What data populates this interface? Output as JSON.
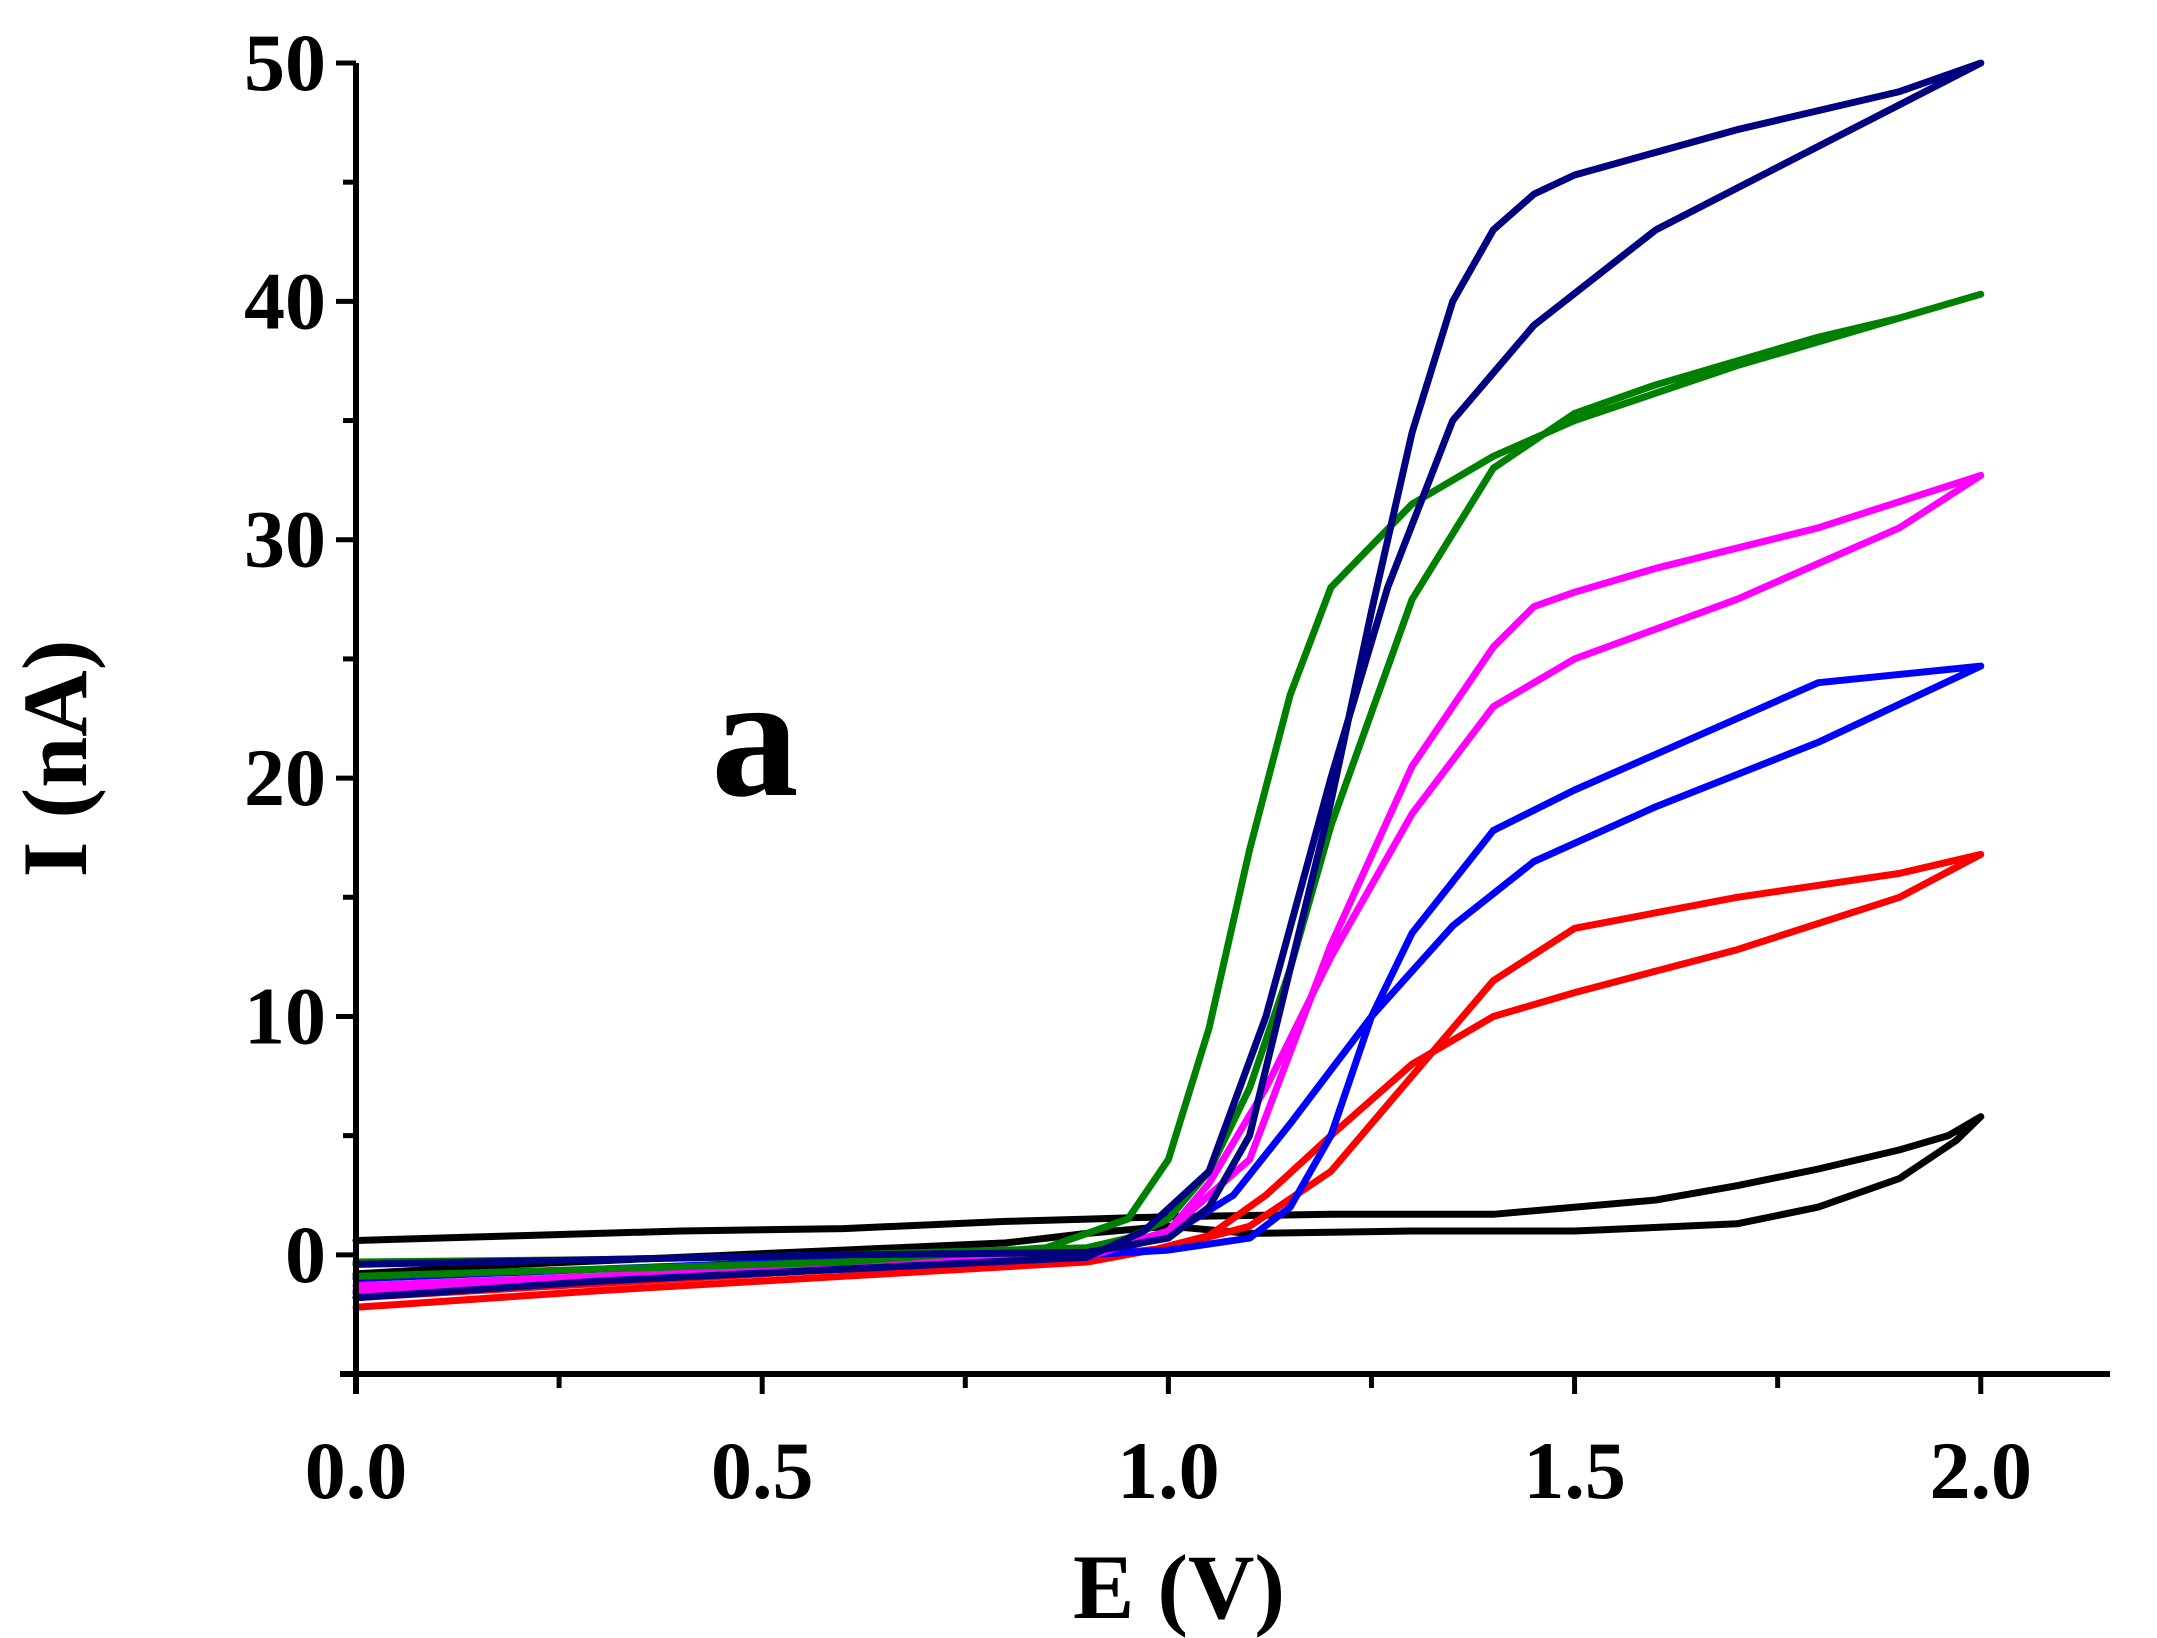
{
  "chart_data": {
    "type": "line",
    "title": "",
    "panel_label": "a",
    "xlabel": "E (V)",
    "ylabel": "I (nA)",
    "xlim": [
      0.0,
      2.1
    ],
    "ylim": [
      -5,
      50
    ],
    "xticks": [
      0.0,
      0.5,
      1.0,
      1.5,
      2.0
    ],
    "xtick_labels": [
      "0.0",
      "0.5",
      "1.0",
      "1.5",
      "2.0"
    ],
    "yticks": [
      0,
      10,
      20,
      30,
      40,
      50
    ],
    "ytick_labels": [
      "0",
      "10",
      "20",
      "30",
      "40",
      "50"
    ],
    "grid": false,
    "series": [
      {
        "name": "black",
        "color": "#000000",
        "x": [
          0.0,
          0.2,
          0.4,
          0.6,
          0.8,
          0.9,
          1.0,
          1.2,
          1.4,
          1.6,
          1.7,
          1.8,
          1.9,
          1.96,
          2.0,
          1.97,
          1.9,
          1.8,
          1.7,
          1.5,
          1.3,
          1.1,
          1.0,
          0.9,
          0.8,
          0.6,
          0.4,
          0.2,
          0.0
        ],
        "y": [
          0.6,
          0.8,
          1.0,
          1.1,
          1.4,
          1.5,
          1.6,
          1.7,
          1.7,
          2.3,
          2.9,
          3.6,
          4.4,
          5.0,
          5.8,
          4.8,
          3.2,
          2.0,
          1.3,
          1.0,
          1.0,
          0.9,
          1.2,
          0.9,
          0.5,
          0.2,
          -0.1,
          -0.4,
          -0.8
        ]
      },
      {
        "name": "red",
        "color": "#ff0000",
        "x": [
          0.0,
          0.3,
          0.6,
          0.9,
          0.98,
          1.05,
          1.12,
          1.2,
          1.3,
          1.4,
          1.5,
          1.7,
          1.9,
          2.0,
          1.9,
          1.7,
          1.5,
          1.4,
          1.3,
          1.2,
          1.1,
          1.0,
          0.9,
          0.6,
          0.3,
          0.0
        ],
        "y": [
          -2.2,
          -1.5,
          -0.9,
          -0.3,
          0.2,
          0.8,
          2.5,
          5.0,
          8.0,
          10.0,
          11.0,
          12.8,
          15.0,
          16.8,
          16.0,
          15.0,
          13.7,
          11.5,
          7.5,
          3.5,
          1.2,
          0.3,
          -0.1,
          -0.6,
          -1.2,
          -1.8
        ]
      },
      {
        "name": "blue",
        "color": "#0000ff",
        "x": [
          0.0,
          0.3,
          0.6,
          0.9,
          1.0,
          1.08,
          1.15,
          1.25,
          1.35,
          1.45,
          1.6,
          1.8,
          2.0,
          1.8,
          1.6,
          1.5,
          1.4,
          1.3,
          1.25,
          1.2,
          1.15,
          1.1,
          1.0,
          0.9,
          0.6,
          0.3,
          0.0
        ],
        "y": [
          -1.6,
          -1.0,
          -0.6,
          -0.1,
          0.8,
          2.5,
          5.5,
          10.0,
          13.8,
          16.5,
          18.8,
          21.5,
          24.7,
          24.0,
          21.0,
          19.5,
          17.8,
          13.5,
          10.0,
          5.0,
          2.0,
          0.7,
          0.2,
          0.0,
          -0.2,
          -0.6,
          -1.0
        ]
      },
      {
        "name": "magenta",
        "color": "#ff00ff",
        "x": [
          0.0,
          0.3,
          0.6,
          0.9,
          1.0,
          1.05,
          1.12,
          1.2,
          1.3,
          1.4,
          1.5,
          1.7,
          1.9,
          2.0,
          1.8,
          1.6,
          1.5,
          1.45,
          1.4,
          1.3,
          1.2,
          1.1,
          1.0,
          0.9,
          0.6,
          0.3,
          0.0
        ],
        "y": [
          -1.5,
          -1.0,
          -0.5,
          0.0,
          1.0,
          3.0,
          7.0,
          12.5,
          18.5,
          23.0,
          25.0,
          27.5,
          30.5,
          32.7,
          30.5,
          28.8,
          27.8,
          27.2,
          25.5,
          20.5,
          13.0,
          4.0,
          1.0,
          -0.1,
          -0.4,
          -0.9,
          -1.3
        ]
      },
      {
        "name": "green",
        "color": "#008000",
        "x": [
          0.0,
          0.3,
          0.6,
          0.85,
          0.95,
          1.0,
          1.05,
          1.1,
          1.15,
          1.2,
          1.3,
          1.4,
          1.5,
          1.7,
          2.0,
          1.9,
          1.8,
          1.6,
          1.5,
          1.4,
          1.3,
          1.2,
          1.15,
          1.1,
          1.05,
          1.0,
          0.95,
          0.9,
          0.6,
          0.3,
          0.0
        ],
        "y": [
          -0.9,
          -0.6,
          -0.3,
          0.3,
          1.5,
          4.0,
          9.5,
          17.0,
          23.5,
          28.0,
          31.5,
          33.5,
          35.0,
          37.3,
          40.3,
          39.3,
          38.5,
          36.5,
          35.3,
          33.0,
          27.5,
          18.0,
          12.0,
          7.0,
          3.5,
          1.5,
          0.7,
          0.3,
          0.0,
          -0.2,
          -0.3
        ]
      },
      {
        "name": "navy",
        "color": "#000080",
        "x": [
          0.0,
          0.3,
          0.6,
          0.9,
          0.97,
          1.05,
          1.12,
          1.2,
          1.27,
          1.35,
          1.45,
          1.6,
          1.8,
          2.0,
          1.9,
          1.7,
          1.5,
          1.45,
          1.4,
          1.35,
          1.3,
          1.25,
          1.2,
          1.15,
          1.1,
          1.05,
          1.0,
          0.9,
          0.6,
          0.3,
          0.0
        ],
        "y": [
          -1.8,
          -1.1,
          -0.6,
          -0.1,
          1.0,
          3.5,
          10.0,
          20.0,
          28.0,
          35.0,
          39.0,
          43.0,
          46.5,
          50.0,
          48.8,
          47.2,
          45.3,
          44.5,
          43.0,
          40.0,
          34.5,
          27.0,
          19.0,
          12.0,
          5.0,
          2.0,
          0.7,
          0.1,
          0.0,
          -0.2,
          -0.4
        ]
      }
    ]
  }
}
